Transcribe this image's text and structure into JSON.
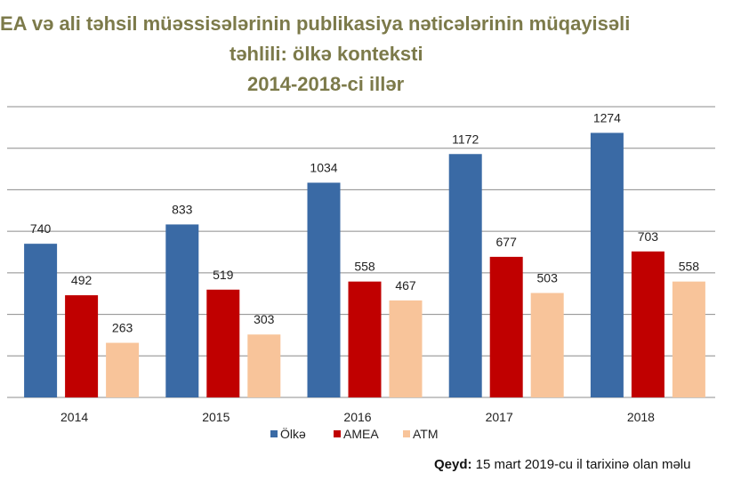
{
  "header": {
    "line1": "EA və ali təhsil müəssisələrinin publikasiya nəticələrinin müqayisəli",
    "line2": "təhlili: ölkə konteksti",
    "line3": "2014-2018-ci illər"
  },
  "chart_data": {
    "type": "bar",
    "categories": [
      "2014",
      "2015",
      "2016",
      "2017",
      "2018"
    ],
    "series": [
      {
        "name": "Ölkə",
        "values": [
          740,
          833,
          1034,
          1172,
          1274
        ],
        "color": "#3a6aa5"
      },
      {
        "name": "AMEA",
        "values": [
          492,
          519,
          558,
          677,
          703
        ],
        "color": "#c00000"
      },
      {
        "name": "ATM",
        "values": [
          263,
          303,
          467,
          503,
          558
        ],
        "color": "#f8c49a"
      }
    ],
    "ylim": [
      0,
      1400
    ],
    "grid": true,
    "legend": "bottom"
  },
  "footer": {
    "note_label": "Qeyd:",
    "note_text": " 15 mart 2019-cu il tarixinə olan məlu"
  }
}
